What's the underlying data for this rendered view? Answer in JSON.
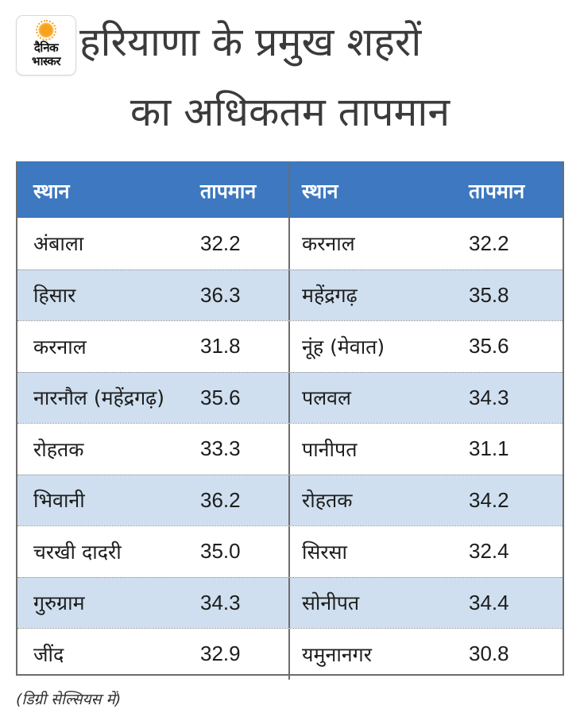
{
  "brand": {
    "name_line1": "दैनिक",
    "name_line2": "भास्कर",
    "logo_icon": "sun-icon",
    "sun_color": "#f7a21b"
  },
  "title": {
    "line1": "हरियाणा के प्रमुख शहरों",
    "line2": "का अधिकतम तापमान"
  },
  "table": {
    "header_color": "#3d78c0",
    "stripe_color": "#cfdfef",
    "headers": {
      "left": {
        "name": "स्थान",
        "temp": "तापमान"
      },
      "right": {
        "name": "स्थान",
        "temp": "तापमान"
      }
    },
    "rows": [
      {
        "left": {
          "name": "अंबाला",
          "temp": "32.2"
        },
        "right": {
          "name": "करनाल",
          "temp": "32.2"
        }
      },
      {
        "left": {
          "name": "हिसार",
          "temp": "36.3"
        },
        "right": {
          "name": "महेंद्रगढ़",
          "temp": "35.8"
        }
      },
      {
        "left": {
          "name": "करनाल",
          "temp": "31.8"
        },
        "right": {
          "name": "नूंह (मेवात)",
          "temp": "35.6"
        }
      },
      {
        "left": {
          "name": "नारनौल (महेंद्रगढ़)",
          "temp": "35.6"
        },
        "right": {
          "name": "पलवल",
          "temp": "34.3"
        }
      },
      {
        "left": {
          "name": "रोहतक",
          "temp": "33.3"
        },
        "right": {
          "name": "पानीपत",
          "temp": "31.1"
        }
      },
      {
        "left": {
          "name": "भिवानी",
          "temp": "36.2"
        },
        "right": {
          "name": "रोहतक",
          "temp": "34.2"
        }
      },
      {
        "left": {
          "name": "चरखी दादरी",
          "temp": "35.0"
        },
        "right": {
          "name": "सिरसा",
          "temp": "32.4"
        }
      },
      {
        "left": {
          "name": "गुरुग्राम",
          "temp": "34.3"
        },
        "right": {
          "name": "सोनीपत",
          "temp": "34.4"
        }
      },
      {
        "left": {
          "name": "जींद",
          "temp": "32.9"
        },
        "right": {
          "name": "यमुनानगर",
          "temp": "30.8"
        }
      }
    ]
  },
  "footnote": "(डिग्री सेल्सियस में)"
}
